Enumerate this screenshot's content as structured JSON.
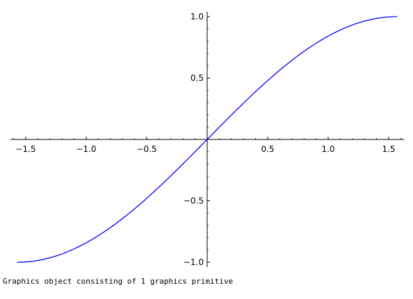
{
  "output": {
    "caption": "Graphics object consisting of 1 graphics primitive"
  },
  "chart_data": {
    "type": "line",
    "title": "",
    "xlabel": "",
    "ylabel": "",
    "xlim": [
      -1.5708,
      1.5708
    ],
    "ylim": [
      -1.0,
      1.0
    ],
    "grid": false,
    "legend": "none",
    "function": "sin(x)",
    "line_color": "#0000ff",
    "x_ticks": [
      {
        "value": -1.5,
        "label": "−1.5"
      },
      {
        "value": -1.0,
        "label": "−1.0"
      },
      {
        "value": -0.5,
        "label": "−0.5"
      },
      {
        "value": 0.5,
        "label": "0.5"
      },
      {
        "value": 1.0,
        "label": "1.0"
      },
      {
        "value": 1.5,
        "label": "1.5"
      }
    ],
    "y_ticks": [
      {
        "value": -1.0,
        "label": "−1.0"
      },
      {
        "value": -0.5,
        "label": "−0.5"
      },
      {
        "value": 0.5,
        "label": "0.5"
      },
      {
        "value": 1.0,
        "label": "1.0"
      }
    ],
    "series": [
      {
        "x": [
          -1.5708,
          -1.4137,
          -1.2566,
          -1.0996,
          -0.9425,
          -0.7854,
          -0.6283,
          -0.4712,
          -0.3142,
          -0.1571,
          0.0,
          0.1571,
          0.3142,
          0.4712,
          0.6283,
          0.7854,
          0.9425,
          1.0996,
          1.2566,
          1.4137,
          1.5708
        ],
        "y": [
          -1.0,
          -0.9877,
          -0.9511,
          -0.891,
          -0.809,
          -0.7071,
          -0.5878,
          -0.454,
          -0.309,
          -0.1564,
          0.0,
          0.1564,
          0.309,
          0.454,
          0.5878,
          0.7071,
          0.809,
          0.891,
          0.9511,
          0.9877,
          1.0
        ]
      }
    ]
  }
}
